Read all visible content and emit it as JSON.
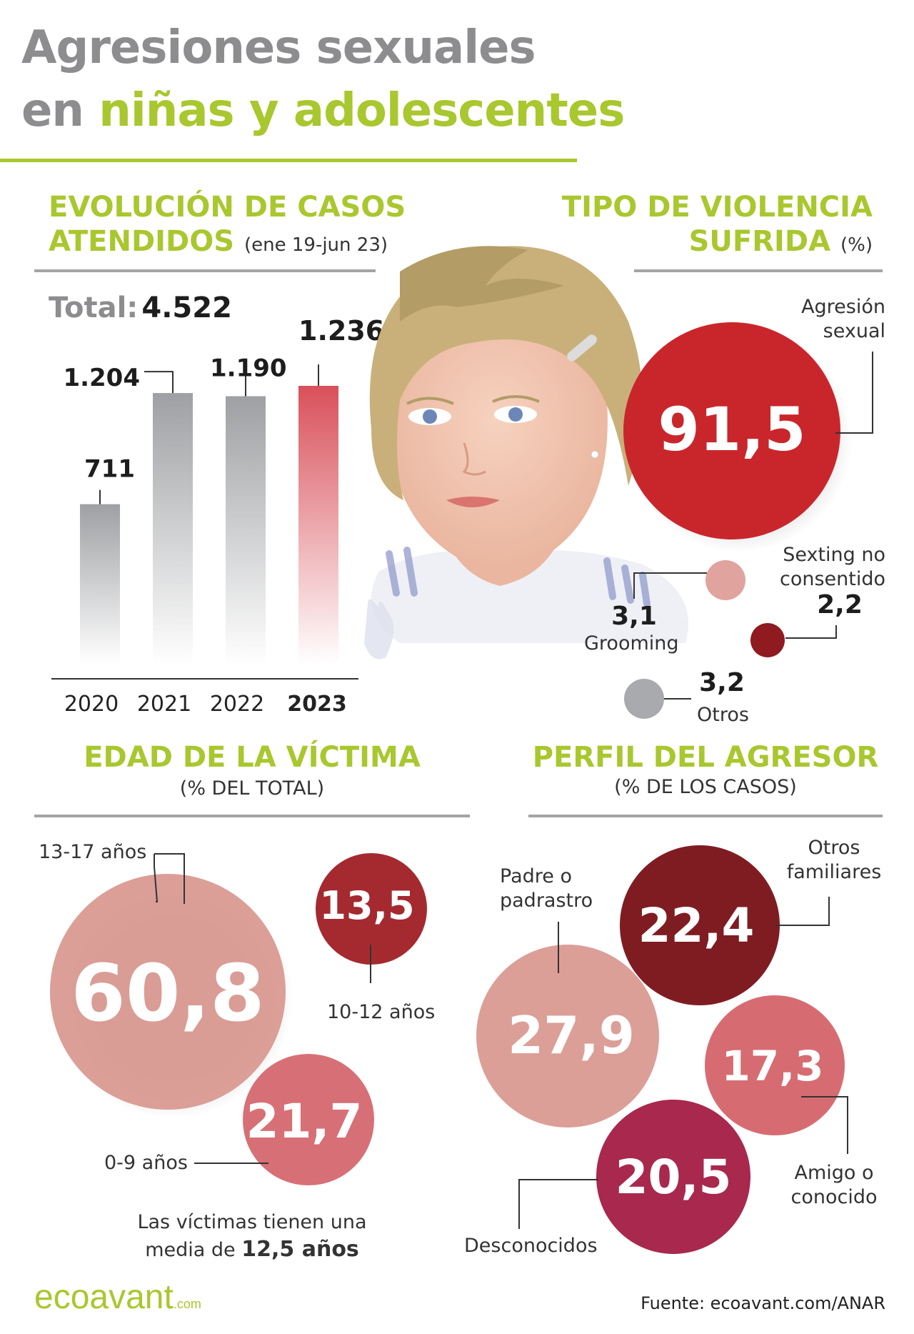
{
  "title": {
    "line1": "Agresiones sexuales",
    "line2_prefix": "en",
    "line2_highlight": "niñas y adolescentes"
  },
  "colors": {
    "accent": "#a9c72e",
    "title_gray": "#8d8d8f",
    "bar_gray": "#9ea0a3",
    "bar_red": "#d9505a"
  },
  "evolution": {
    "heading_line1": "EVOLUCIÓN DE CASOS",
    "heading_line2": "ATENDIDOS",
    "period": "(ene 19-jun 23)",
    "total_label": "Total:",
    "total_value": "4.522"
  },
  "violence": {
    "heading_line1": "TIPO DE VIOLENCIA",
    "heading_line2": "SUFRIDA",
    "unit": "(%)"
  },
  "age": {
    "heading": "EDAD DE LA VÍCTIMA",
    "subheading": "(% DEL TOTAL)",
    "note_line1": "Las víctimas tienen una",
    "note_line2_prefix": "media de",
    "note_line2_value": "12,5 años"
  },
  "aggressor": {
    "heading": "PERFIL DEL AGRESOR",
    "subheading": "(% DE LOS CASOS)"
  },
  "footer": {
    "logo": "ecoavant",
    "logo_suffix": ".com",
    "source": "Fuente: ecoavant.com/ANAR"
  },
  "chart_data": [
    {
      "type": "bar",
      "title": "EVOLUCIÓN DE CASOS ATENDIDOS",
      "categories": [
        "2020",
        "2021",
        "2022",
        "2023"
      ],
      "values": [
        711,
        1204,
        1190,
        1236
      ],
      "value_labels": [
        "711",
        "1.204",
        "1.190",
        "1.236"
      ],
      "highlight": "2023",
      "ylim": [
        0,
        1236
      ]
    },
    {
      "type": "bubble",
      "title": "TIPO DE VIOLENCIA SUFRIDA",
      "labels": [
        "Agresión sexual",
        "Sexting no consentido",
        "Grooming",
        "Otros"
      ],
      "values": [
        91.5,
        2.2,
        3.1,
        3.2
      ],
      "value_labels": [
        "91,5",
        "2,2",
        "3,1",
        "3,2"
      ],
      "colors": [
        "#c9262c",
        "#8f1a1f",
        "#e0a39e",
        "#a9aaad"
      ]
    },
    {
      "type": "bubble",
      "title": "EDAD DE LA VÍCTIMA",
      "labels": [
        "13-17 años",
        "10-12 años",
        "0-9 años"
      ],
      "values": [
        60.8,
        13.5,
        21.7
      ],
      "value_labels": [
        "60,8",
        "13,5",
        "21,7"
      ],
      "colors": [
        "#d99a92",
        "#a42a30",
        "#d4646a"
      ]
    },
    {
      "type": "bubble",
      "title": "PERFIL DEL AGRESOR",
      "labels": [
        "Padre o padrastro",
        "Otros familiares",
        "Amigo o conocido",
        "Desconocidos"
      ],
      "values": [
        27.9,
        22.4,
        17.3,
        20.5
      ],
      "value_labels": [
        "27,9",
        "22,4",
        "17,3",
        "20,5"
      ],
      "colors": [
        "#d99a92",
        "#7f1c22",
        "#d4646a",
        "#a8284e"
      ]
    }
  ],
  "bubble_labels": {
    "agresion": [
      "Agresión",
      "sexual"
    ],
    "sexting": [
      "Sexting no",
      "consentido"
    ],
    "grooming": "Grooming",
    "otros": "Otros",
    "age_13_17": "13-17 años",
    "age_10_12": "10-12 años",
    "age_0_9": "0-9 años",
    "padre": [
      "Padre o",
      "padrastro"
    ],
    "familiares": [
      "Otros",
      "familiares"
    ],
    "amigo": [
      "Amigo o",
      "conocido"
    ],
    "desconocidos": "Desconocidos"
  }
}
